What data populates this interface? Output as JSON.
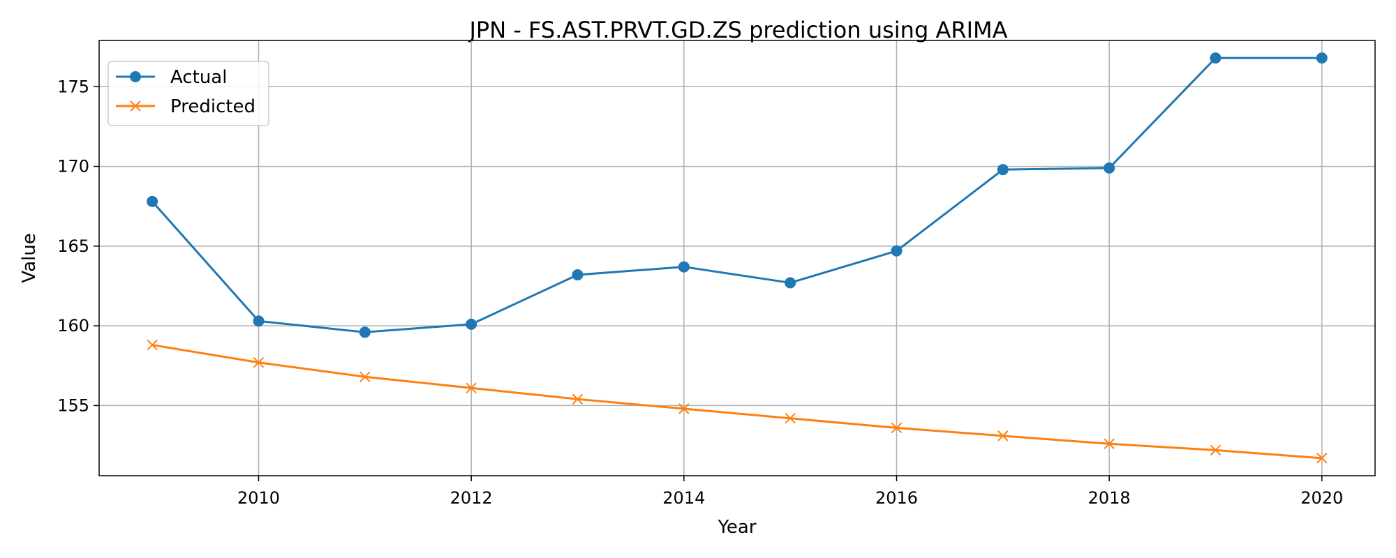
{
  "chart_data": {
    "type": "line",
    "title": "JPN - FS.AST.PRVT.GD.ZS prediction using ARIMA",
    "xlabel": "Year",
    "ylabel": "Value",
    "xlim": [
      2008.5,
      2020.5
    ],
    "ylim": [
      150.6,
      177.9
    ],
    "x_ticks": [
      2010,
      2012,
      2014,
      2016,
      2018,
      2020
    ],
    "y_ticks": [
      155,
      160,
      165,
      170,
      175
    ],
    "grid": true,
    "legend_position": "top-left",
    "x": [
      2009,
      2010,
      2011,
      2012,
      2013,
      2014,
      2015,
      2016,
      2017,
      2018,
      2019,
      2020
    ],
    "series": [
      {
        "name": "Actual",
        "color": "#1f77b4",
        "marker": "circle",
        "values": [
          167.8,
          160.3,
          159.6,
          160.1,
          163.2,
          163.7,
          162.7,
          164.7,
          169.8,
          169.9,
          176.8,
          176.8
        ]
      },
      {
        "name": "Predicted",
        "color": "#ff7f0e",
        "marker": "x",
        "values": [
          158.8,
          157.7,
          156.8,
          156.1,
          155.4,
          154.8,
          154.2,
          153.6,
          153.1,
          152.6,
          152.2,
          151.7
        ]
      }
    ]
  }
}
